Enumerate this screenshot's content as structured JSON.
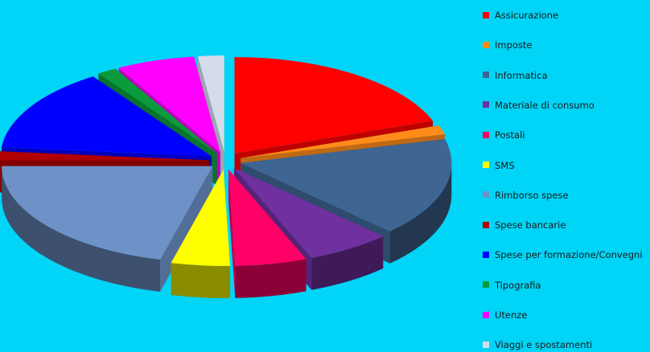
{
  "chart_data": {
    "type": "pie",
    "style": "3d-exploded",
    "legend_position": "right",
    "slices": [
      {
        "label": "Assicurazione",
        "value": 19.5,
        "color": "#ff0000"
      },
      {
        "label": "Imposte",
        "value": 1.5,
        "color": "#ff8c1a"
      },
      {
        "label": "Informatica",
        "value": 16.5,
        "color": "#3f6592"
      },
      {
        "label": "Materiale di consumo",
        "value": 6.5,
        "color": "#7030a0"
      },
      {
        "label": "Postali",
        "value": 5.5,
        "color": "#ff0066"
      },
      {
        "label": "SMS",
        "value": 4.5,
        "color": "#ffff00"
      },
      {
        "label": "Rimborso spese",
        "value": 21,
        "color": "#6e92c8"
      },
      {
        "label": "Spese bancarie",
        "value": 1.5,
        "color": "#b00000"
      },
      {
        "label": "Spese per formazione/Convegni",
        "value": 14,
        "color": "#0000ff"
      },
      {
        "label": "Tipografia",
        "value": 1.5,
        "color": "#0a9b3c"
      },
      {
        "label": "Utenze",
        "value": 6,
        "color": "#ff00ff"
      },
      {
        "label": "Viaggi e spostamenti",
        "value": 2,
        "color": "#d4dcea"
      }
    ]
  }
}
